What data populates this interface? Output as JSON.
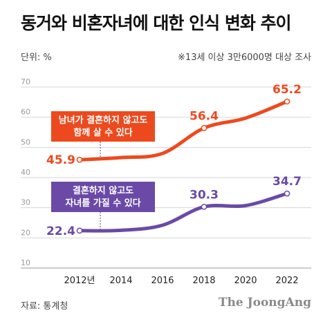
{
  "header": {
    "title": "동거와 비혼자녀에 대한 인식 변화 추이",
    "unit": "단위: %",
    "note": "※13세 이상 3만6000명 대상 조사"
  },
  "footer": {
    "source": "자료: 통계청",
    "brand": "The JoongAng"
  },
  "colors": {
    "series1": "#ec4a1e",
    "series2": "#6a4aa6"
  },
  "chart_data": {
    "type": "line",
    "x": [
      2012,
      2014,
      2016,
      2018,
      2020,
      2022
    ],
    "x_tick_labels": [
      "2012년",
      "2014",
      "2016",
      "2018",
      "2020",
      "2022"
    ],
    "ylim": [
      10,
      70
    ],
    "y_ticks": [
      10,
      20,
      30,
      40,
      50,
      60,
      70
    ],
    "grid": true,
    "series": [
      {
        "name": "남녀가 결혼하지 않고도 함께 살 수 있다",
        "values": [
          45.9,
          46.6,
          48.0,
          56.4,
          59.7,
          65.2
        ],
        "data_labels": [
          "45.9",
          "",
          "",
          "56.4",
          "",
          "65.2"
        ]
      },
      {
        "name": "결혼하지 않고도 자녀를 가질 수 있다",
        "values": [
          22.4,
          22.5,
          24.2,
          30.3,
          30.7,
          34.7
        ],
        "data_labels": [
          "22.4",
          "",
          "",
          "30.3",
          "",
          "34.7"
        ]
      }
    ],
    "annotations": [
      {
        "series": 0,
        "lines": [
          "남녀가 결혼하지 않고도",
          "함께 살 수 있다"
        ]
      },
      {
        "series": 1,
        "lines": [
          "결혼하지 않고도",
          "자녀를 가질 수 있다"
        ]
      }
    ]
  }
}
